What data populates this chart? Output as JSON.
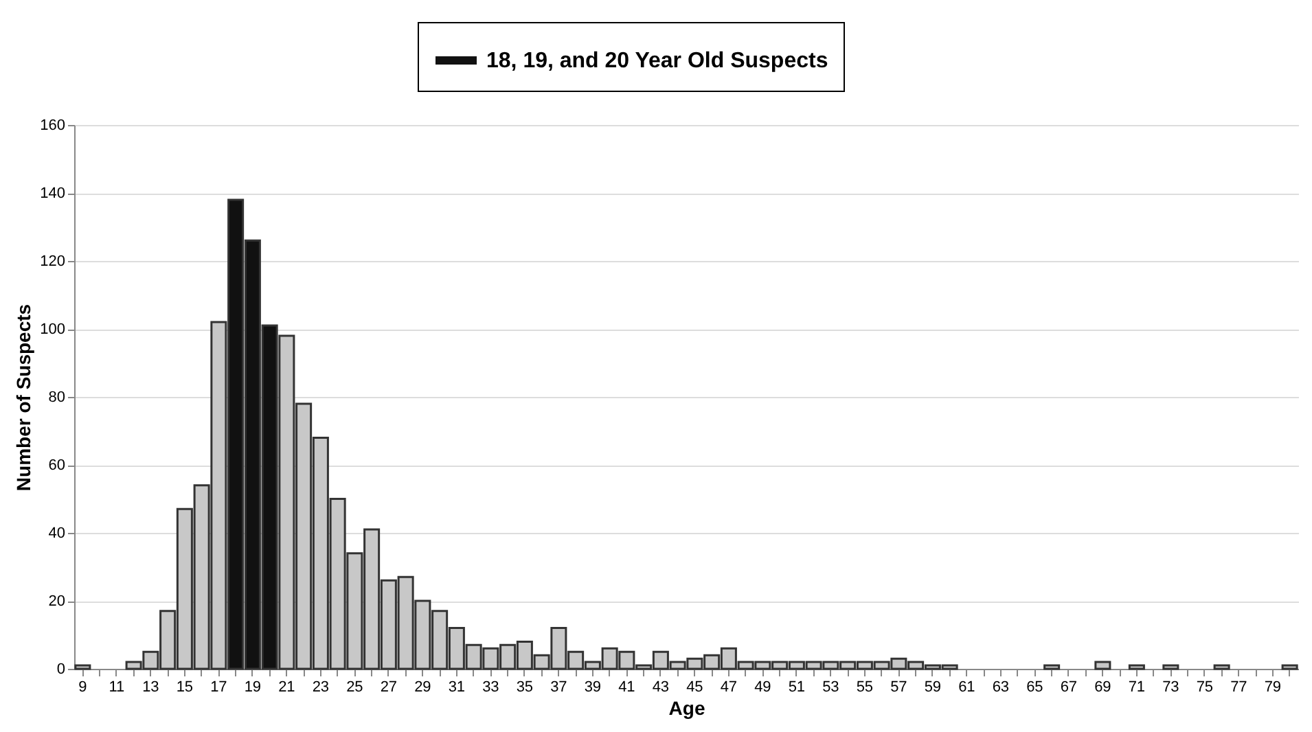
{
  "chart_data": {
    "type": "bar",
    "xlabel": "Age",
    "ylabel": "Number of Suspects",
    "categories": [
      "9",
      null,
      "11",
      null,
      "13",
      null,
      "15",
      null,
      "17",
      null,
      "19",
      null,
      "21",
      null,
      "23",
      null,
      "25",
      null,
      "27",
      null,
      "29",
      null,
      "31",
      null,
      "33",
      null,
      "35",
      null,
      "37",
      null,
      "39",
      null,
      "41",
      null,
      "43",
      null,
      "45",
      null,
      "47",
      null,
      "49",
      null,
      "51",
      null,
      "53",
      null,
      "55",
      null,
      "57",
      null,
      "59",
      null,
      "61",
      null,
      "63",
      null,
      "65",
      null,
      "67",
      null,
      "69",
      null,
      "71",
      null,
      "73",
      null,
      "75",
      null,
      "77",
      null,
      "79",
      null
    ],
    "series": [
      {
        "name": "18, 19, and 20 Year Old Suspects",
        "color": "#111111",
        "values": [
          null,
          null,
          null,
          null,
          null,
          null,
          null,
          null,
          null,
          138,
          126,
          101,
          null,
          null,
          null,
          null,
          null,
          null,
          null,
          null,
          null,
          null,
          null,
          null,
          null,
          null,
          null,
          null,
          null,
          null,
          null,
          null,
          null,
          null,
          null,
          null,
          null,
          null,
          null,
          null,
          null,
          null,
          null,
          null,
          null,
          null,
          null,
          null,
          null,
          null,
          null,
          null,
          null,
          null,
          null,
          null,
          null,
          null,
          null,
          null,
          null,
          null,
          null,
          null,
          null,
          null,
          null,
          null,
          null,
          null,
          null,
          null
        ]
      },
      {
        "color": "#c8c8c8",
        "values": [
          1,
          0,
          0,
          2,
          5,
          17,
          47,
          54,
          102,
          null,
          null,
          null,
          98,
          78,
          68,
          50,
          34,
          41,
          26,
          27,
          20,
          17,
          12,
          7,
          6,
          7,
          8,
          4,
          12,
          5,
          2,
          6,
          5,
          1,
          5,
          2,
          3,
          4,
          6,
          2,
          2,
          2,
          2,
          2,
          2,
          2,
          2,
          2,
          3,
          2,
          1,
          1,
          0,
          0,
          0,
          0,
          0,
          1,
          0,
          0,
          2,
          0,
          1,
          0,
          1,
          0,
          0,
          1,
          0,
          0,
          0,
          1
        ]
      }
    ],
    "ylim": [
      0,
      160
    ],
    "yticks": [
      0,
      20,
      40,
      60,
      80,
      100,
      120,
      140,
      160
    ],
    "grid": "y",
    "legend": "top"
  }
}
